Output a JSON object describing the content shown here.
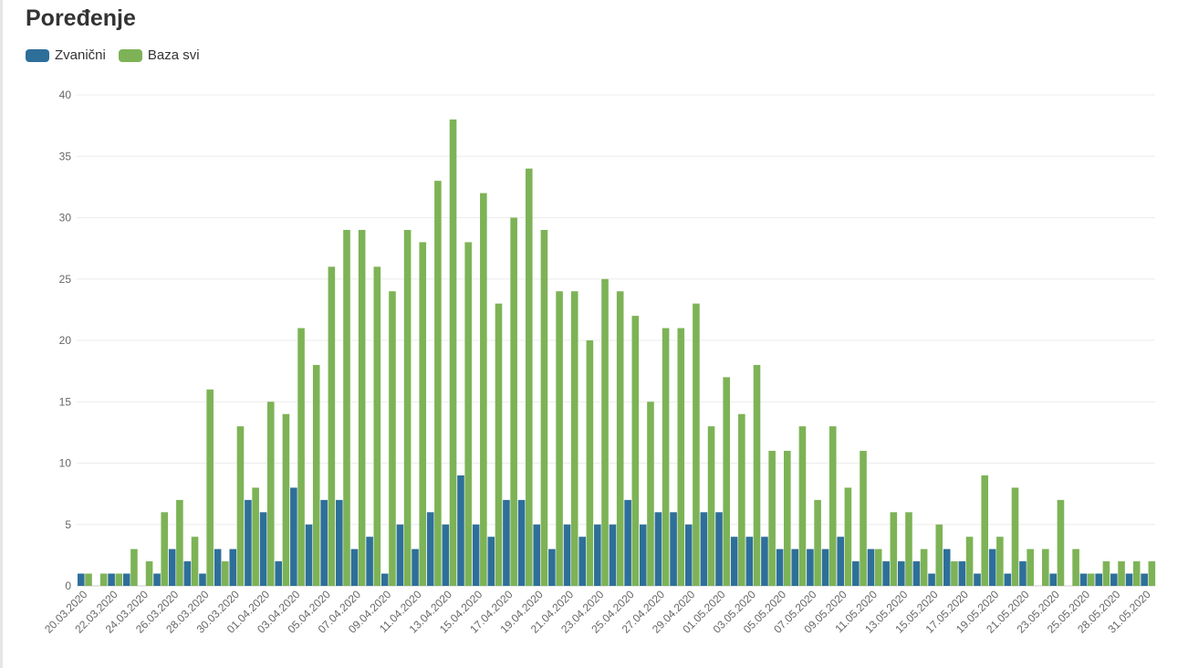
{
  "title": "Poređenje",
  "colors": {
    "official": "#2e6f9a",
    "all": "#7db356",
    "grid": "#ececec",
    "axis_text": "#666666"
  },
  "chart_data": {
    "type": "bar",
    "title": "Poređenje",
    "xlabel": "",
    "ylabel": "",
    "ylim": [
      0,
      40
    ],
    "yticks": [
      0,
      5,
      10,
      15,
      20,
      25,
      30,
      35,
      40
    ],
    "grid": true,
    "legend_position": "top-left",
    "categories": [
      "20.03.2020",
      "21.03.2020",
      "22.03.2020",
      "23.03.2020",
      "24.03.2020",
      "25.03.2020",
      "26.03.2020",
      "27.03.2020",
      "28.03.2020",
      "29.03.2020",
      "30.03.2020",
      "31.03.2020",
      "01.04.2020",
      "02.04.2020",
      "03.04.2020",
      "04.04.2020",
      "05.04.2020",
      "06.04.2020",
      "07.04.2020",
      "08.04.2020",
      "09.04.2020",
      "10.04.2020",
      "11.04.2020",
      "12.04.2020",
      "13.04.2020",
      "14.04.2020",
      "15.04.2020",
      "16.04.2020",
      "17.04.2020",
      "18.04.2020",
      "19.04.2020",
      "20.04.2020",
      "21.04.2020",
      "22.04.2020",
      "23.04.2020",
      "24.04.2020",
      "25.04.2020",
      "26.04.2020",
      "27.04.2020",
      "28.04.2020",
      "29.04.2020",
      "30.04.2020",
      "01.05.2020",
      "02.05.2020",
      "03.05.2020",
      "04.05.2020",
      "05.05.2020",
      "06.05.2020",
      "07.05.2020",
      "08.05.2020",
      "09.05.2020",
      "10.05.2020",
      "11.05.2020",
      "12.05.2020",
      "13.05.2020",
      "14.05.2020",
      "15.05.2020",
      "16.05.2020",
      "17.05.2020",
      "18.05.2020",
      "19.05.2020",
      "20.05.2020",
      "21.05.2020",
      "22.05.2020",
      "23.05.2020",
      "24.05.2020",
      "25.05.2020",
      "27.05.2020",
      "28.05.2020",
      "29.05.2020",
      "31.05.2020"
    ],
    "tick_labels": [
      "20.03.2020",
      "",
      "22.03.2020",
      "",
      "24.03.2020",
      "",
      "26.03.2020",
      "",
      "28.03.2020",
      "",
      "30.03.2020",
      "",
      "01.04.2020",
      "",
      "03.04.2020",
      "",
      "05.04.2020",
      "",
      "07.04.2020",
      "",
      "09.04.2020",
      "",
      "11.04.2020",
      "",
      "13.04.2020",
      "",
      "15.04.2020",
      "",
      "17.04.2020",
      "",
      "19.04.2020",
      "",
      "21.04.2020",
      "",
      "23.04.2020",
      "",
      "25.04.2020",
      "",
      "27.04.2020",
      "",
      "29.04.2020",
      "",
      "01.05.2020",
      "",
      "03.05.2020",
      "",
      "05.05.2020",
      "",
      "07.05.2020",
      "",
      "09.05.2020",
      "",
      "11.05.2020",
      "",
      "13.05.2020",
      "",
      "15.05.2020",
      "",
      "17.05.2020",
      "",
      "19.05.2020",
      "",
      "21.05.2020",
      "",
      "23.05.2020",
      "",
      "25.05.2020",
      "",
      "28.05.2020",
      "",
      "31.05.2020"
    ],
    "series": [
      {
        "name": "Zvanični",
        "color": "#2e6f9a",
        "values": [
          1,
          0,
          1,
          1,
          0,
          1,
          3,
          2,
          1,
          3,
          3,
          7,
          6,
          2,
          8,
          5,
          7,
          7,
          3,
          4,
          1,
          5,
          3,
          6,
          5,
          9,
          5,
          4,
          7,
          7,
          5,
          3,
          5,
          4,
          5,
          5,
          7,
          5,
          6,
          6,
          5,
          6,
          6,
          4,
          4,
          4,
          3,
          3,
          3,
          3,
          4,
          2,
          3,
          2,
          2,
          2,
          1,
          3,
          2,
          1,
          3,
          1,
          2,
          0,
          1,
          0,
          1,
          1,
          1,
          1,
          1
        ]
      },
      {
        "name": "Baza svi",
        "color": "#7db356",
        "values": [
          1,
          1,
          1,
          3,
          2,
          6,
          7,
          4,
          16,
          2,
          13,
          8,
          15,
          14,
          21,
          18,
          26,
          29,
          29,
          26,
          24,
          29,
          28,
          33,
          38,
          28,
          32,
          23,
          30,
          34,
          29,
          24,
          24,
          20,
          25,
          24,
          22,
          15,
          21,
          21,
          23,
          13,
          17,
          14,
          18,
          11,
          11,
          13,
          7,
          13,
          8,
          11,
          3,
          6,
          6,
          3,
          5,
          2,
          4,
          9,
          4,
          8,
          3,
          3,
          7,
          3,
          1,
          2,
          2,
          2,
          2
        ]
      }
    ]
  }
}
